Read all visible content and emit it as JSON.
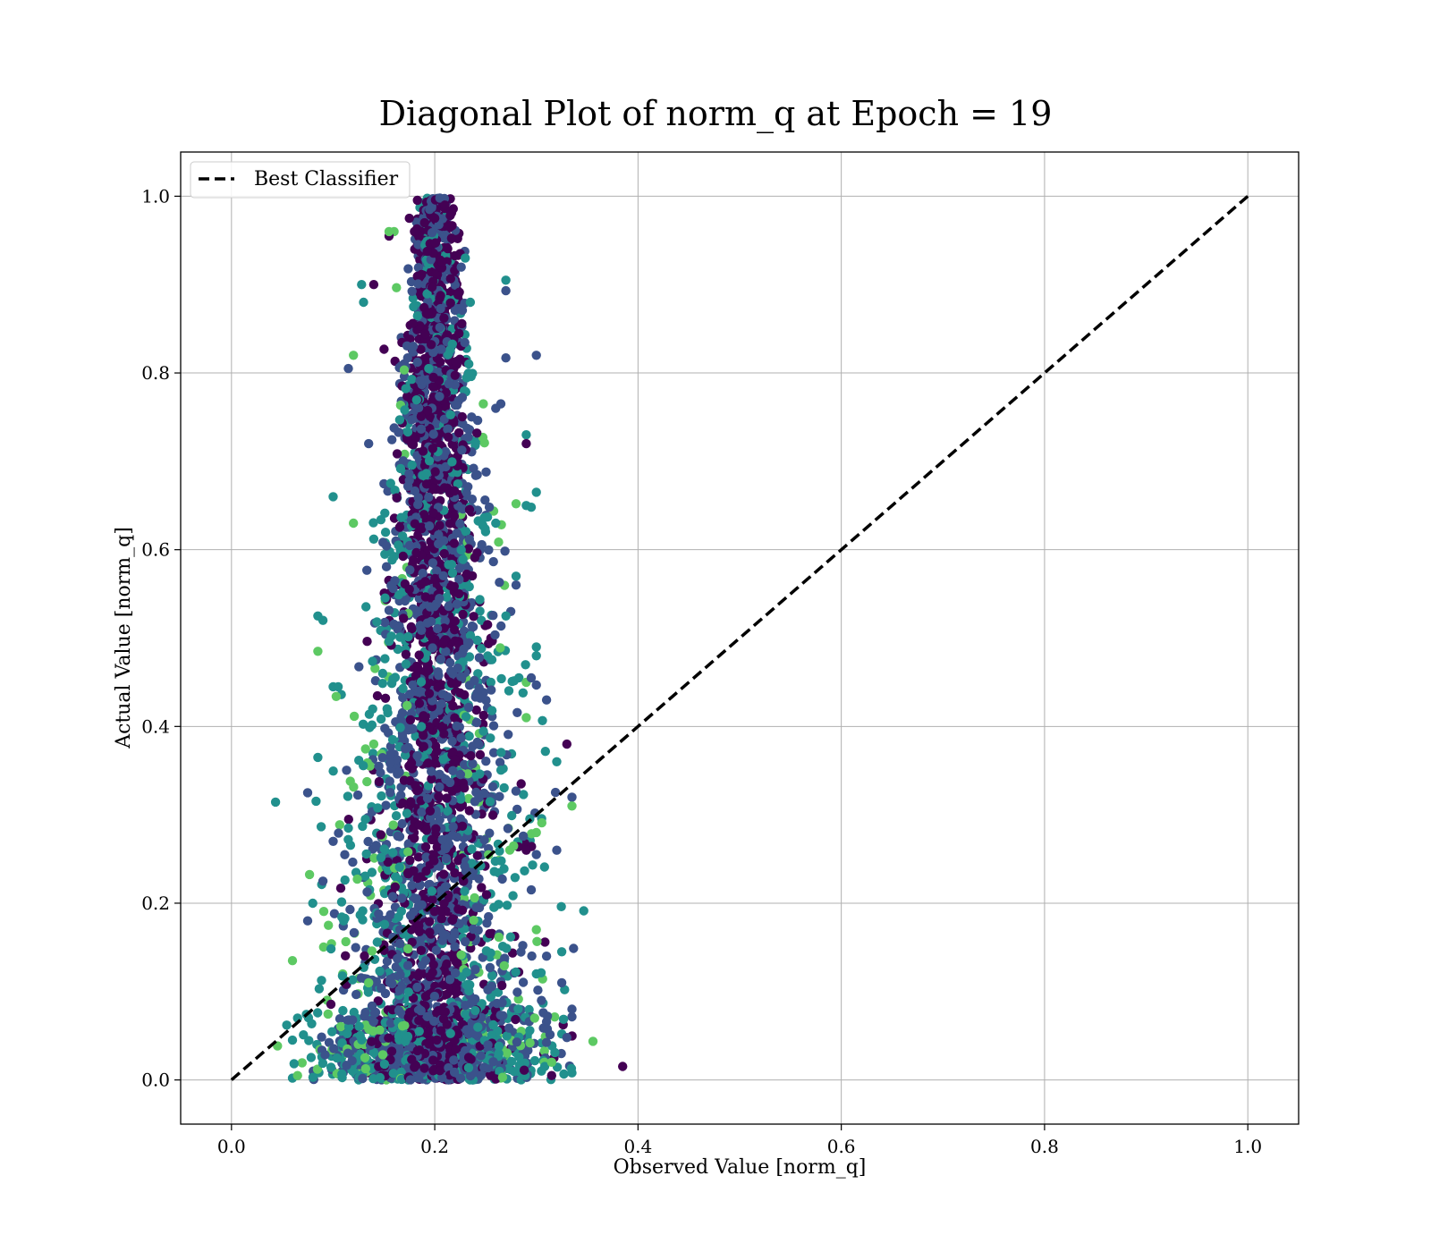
{
  "chart_data": {
    "type": "scatter",
    "title": "Diagonal Plot of norm_q at Epoch = 19",
    "xlabel": "Observed Value [norm_q]",
    "ylabel": "Actual Value [norm_q]",
    "xlim": [
      -0.05,
      1.05
    ],
    "ylim": [
      -0.05,
      1.05
    ],
    "grid": true,
    "x_ticks": [
      "0.0",
      "0.2",
      "0.4",
      "0.6",
      "0.8",
      "1.0"
    ],
    "y_ticks": [
      "0.0",
      "0.2",
      "0.4",
      "0.6",
      "0.8",
      "1.0"
    ],
    "legend": {
      "placement": "upper-left",
      "entries": [
        {
          "label": "Best Classifier",
          "style": "dashed",
          "color": "#000000"
        }
      ]
    },
    "reference_line": {
      "label": "Best Classifier",
      "x": [
        0.0,
        1.0
      ],
      "y": [
        0.0,
        1.0
      ],
      "style": "dashed",
      "color": "#000000"
    },
    "colormap": [
      "#440154",
      "#3b528b",
      "#21908d",
      "#5dc963",
      "#fde725"
    ],
    "scatter_summary": {
      "description_points": "dense cloud of points centered near observed ≈ 0.20",
      "x_center": 0.2,
      "x_spread_at_y0": [
        0.05,
        0.34
      ],
      "x_spread_at_y1": [
        0.17,
        0.23
      ],
      "y_range": [
        0.0,
        1.0
      ]
    },
    "points": [
      [
        0.205,
        0.998
      ],
      [
        0.21,
        0.99
      ],
      [
        0.195,
        0.985
      ],
      [
        0.2,
        0.975
      ],
      [
        0.19,
        0.97
      ],
      [
        0.215,
        0.965
      ],
      [
        0.18,
        0.96
      ],
      [
        0.175,
        0.975
      ],
      [
        0.16,
        0.96
      ],
      [
        0.155,
        0.955
      ],
      [
        0.225,
        0.935
      ],
      [
        0.23,
        0.93
      ],
      [
        0.27,
        0.905
      ],
      [
        0.27,
        0.893
      ],
      [
        0.128,
        0.9
      ],
      [
        0.14,
        0.9
      ],
      [
        0.13,
        0.88
      ],
      [
        0.235,
        0.88
      ],
      [
        0.12,
        0.82
      ],
      [
        0.3,
        0.82
      ],
      [
        0.27,
        0.817
      ],
      [
        0.115,
        0.805
      ],
      [
        0.26,
        0.76
      ],
      [
        0.265,
        0.765
      ],
      [
        0.29,
        0.73
      ],
      [
        0.29,
        0.72
      ],
      [
        0.1,
        0.66
      ],
      [
        0.3,
        0.665
      ],
      [
        0.28,
        0.652
      ],
      [
        0.29,
        0.65
      ],
      [
        0.295,
        0.648
      ],
      [
        0.26,
        0.63
      ],
      [
        0.12,
        0.63
      ],
      [
        0.28,
        0.57
      ],
      [
        0.28,
        0.56
      ],
      [
        0.085,
        0.525
      ],
      [
        0.09,
        0.52
      ],
      [
        0.3,
        0.49
      ],
      [
        0.3,
        0.48
      ],
      [
        0.085,
        0.485
      ],
      [
        0.29,
        0.45
      ],
      [
        0.295,
        0.455
      ],
      [
        0.1,
        0.445
      ],
      [
        0.105,
        0.445
      ],
      [
        0.31,
        0.43
      ],
      [
        0.29,
        0.41
      ],
      [
        0.33,
        0.38
      ],
      [
        0.085,
        0.365
      ],
      [
        0.32,
        0.36
      ],
      [
        0.285,
        0.335
      ],
      [
        0.075,
        0.325
      ],
      [
        0.335,
        0.32
      ],
      [
        0.335,
        0.31
      ],
      [
        0.3,
        0.28
      ],
      [
        0.29,
        0.26
      ],
      [
        0.32,
        0.26
      ],
      [
        0.3,
        0.255
      ],
      [
        0.295,
        0.215
      ],
      [
        0.09,
        0.225
      ],
      [
        0.08,
        0.2
      ],
      [
        0.075,
        0.18
      ],
      [
        0.3,
        0.17
      ],
      [
        0.325,
        0.145
      ],
      [
        0.06,
        0.135
      ],
      [
        0.31,
        0.14
      ],
      [
        0.3,
        0.12
      ],
      [
        0.325,
        0.11
      ],
      [
        0.305,
        0.09
      ],
      [
        0.335,
        0.08
      ],
      [
        0.065,
        0.07
      ],
      [
        0.06,
        0.045
      ],
      [
        0.33,
        0.048
      ],
      [
        0.315,
        0.02
      ],
      [
        0.305,
        0.01
      ],
      [
        0.335,
        0.008
      ],
      [
        0.315,
        0.005
      ],
      [
        0.065,
        0.005
      ],
      [
        0.1,
        0.27
      ],
      [
        0.115,
        0.285
      ],
      [
        0.135,
        0.11
      ],
      [
        0.14,
        0.38
      ],
      [
        0.145,
        0.355
      ],
      [
        0.135,
        0.72
      ],
      [
        0.155,
        0.96
      ]
    ]
  }
}
